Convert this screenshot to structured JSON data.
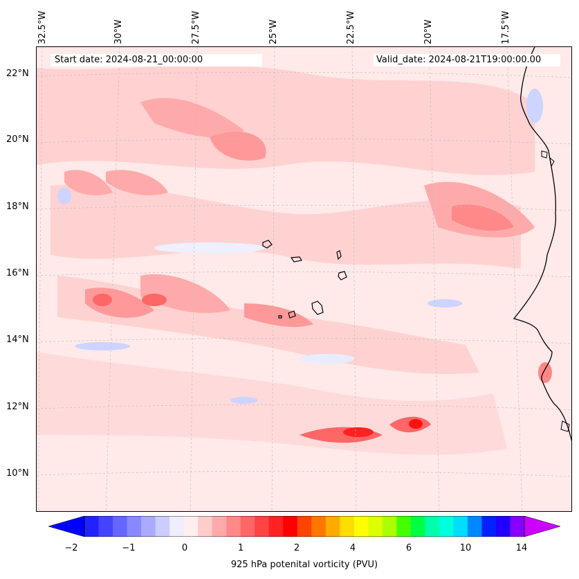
{
  "map": {
    "start_date": "Start date: 2024-08-21_00:00:00",
    "valid_date": "Valid_date: 2024-08-21T19:00:00.00",
    "lon_labels": [
      "32.5°W",
      "30°W",
      "27.5°W",
      "25°W",
      "22.5°W",
      "20°W",
      "17.5°W"
    ],
    "lat_labels": [
      "22°N",
      "20°N",
      "18°N",
      "16°N",
      "14°N",
      "12°N",
      "10°N"
    ],
    "field": "925 hPa potential vorticity",
    "colors": {
      "neg_strong": "#0000ff",
      "neg_weak": "#e8ecff",
      "pos_weak": "#ffe6e6",
      "pos_mid": "#ffb3b3",
      "pos_strong": "#ff0000",
      "coast": "#000000"
    }
  },
  "colorbar": {
    "tick_labels": [
      "−2",
      "−1",
      "0",
      "1",
      "2",
      "4",
      "6",
      "10",
      "14"
    ],
    "title": "925 hPa potenital vorticity (PVU)",
    "colors": [
      "#0000ff",
      "#2222ff",
      "#4444ff",
      "#6666ff",
      "#8888ff",
      "#aaaaff",
      "#ccccff",
      "#eeeeff",
      "#ffeeee",
      "#ffcccc",
      "#ffaaaa",
      "#ff8888",
      "#ff6666",
      "#ff4444",
      "#ff2222",
      "#ff0000",
      "#ff4400",
      "#ff7700",
      "#ffaa00",
      "#ffdd00",
      "#ffff00",
      "#ddff00",
      "#aaff00",
      "#44ff00",
      "#00ff44",
      "#00ffaa",
      "#00ffdd",
      "#00ddff",
      "#0088ff",
      "#0022ff",
      "#2200ff",
      "#8800ff",
      "#cc00ff"
    ]
  }
}
